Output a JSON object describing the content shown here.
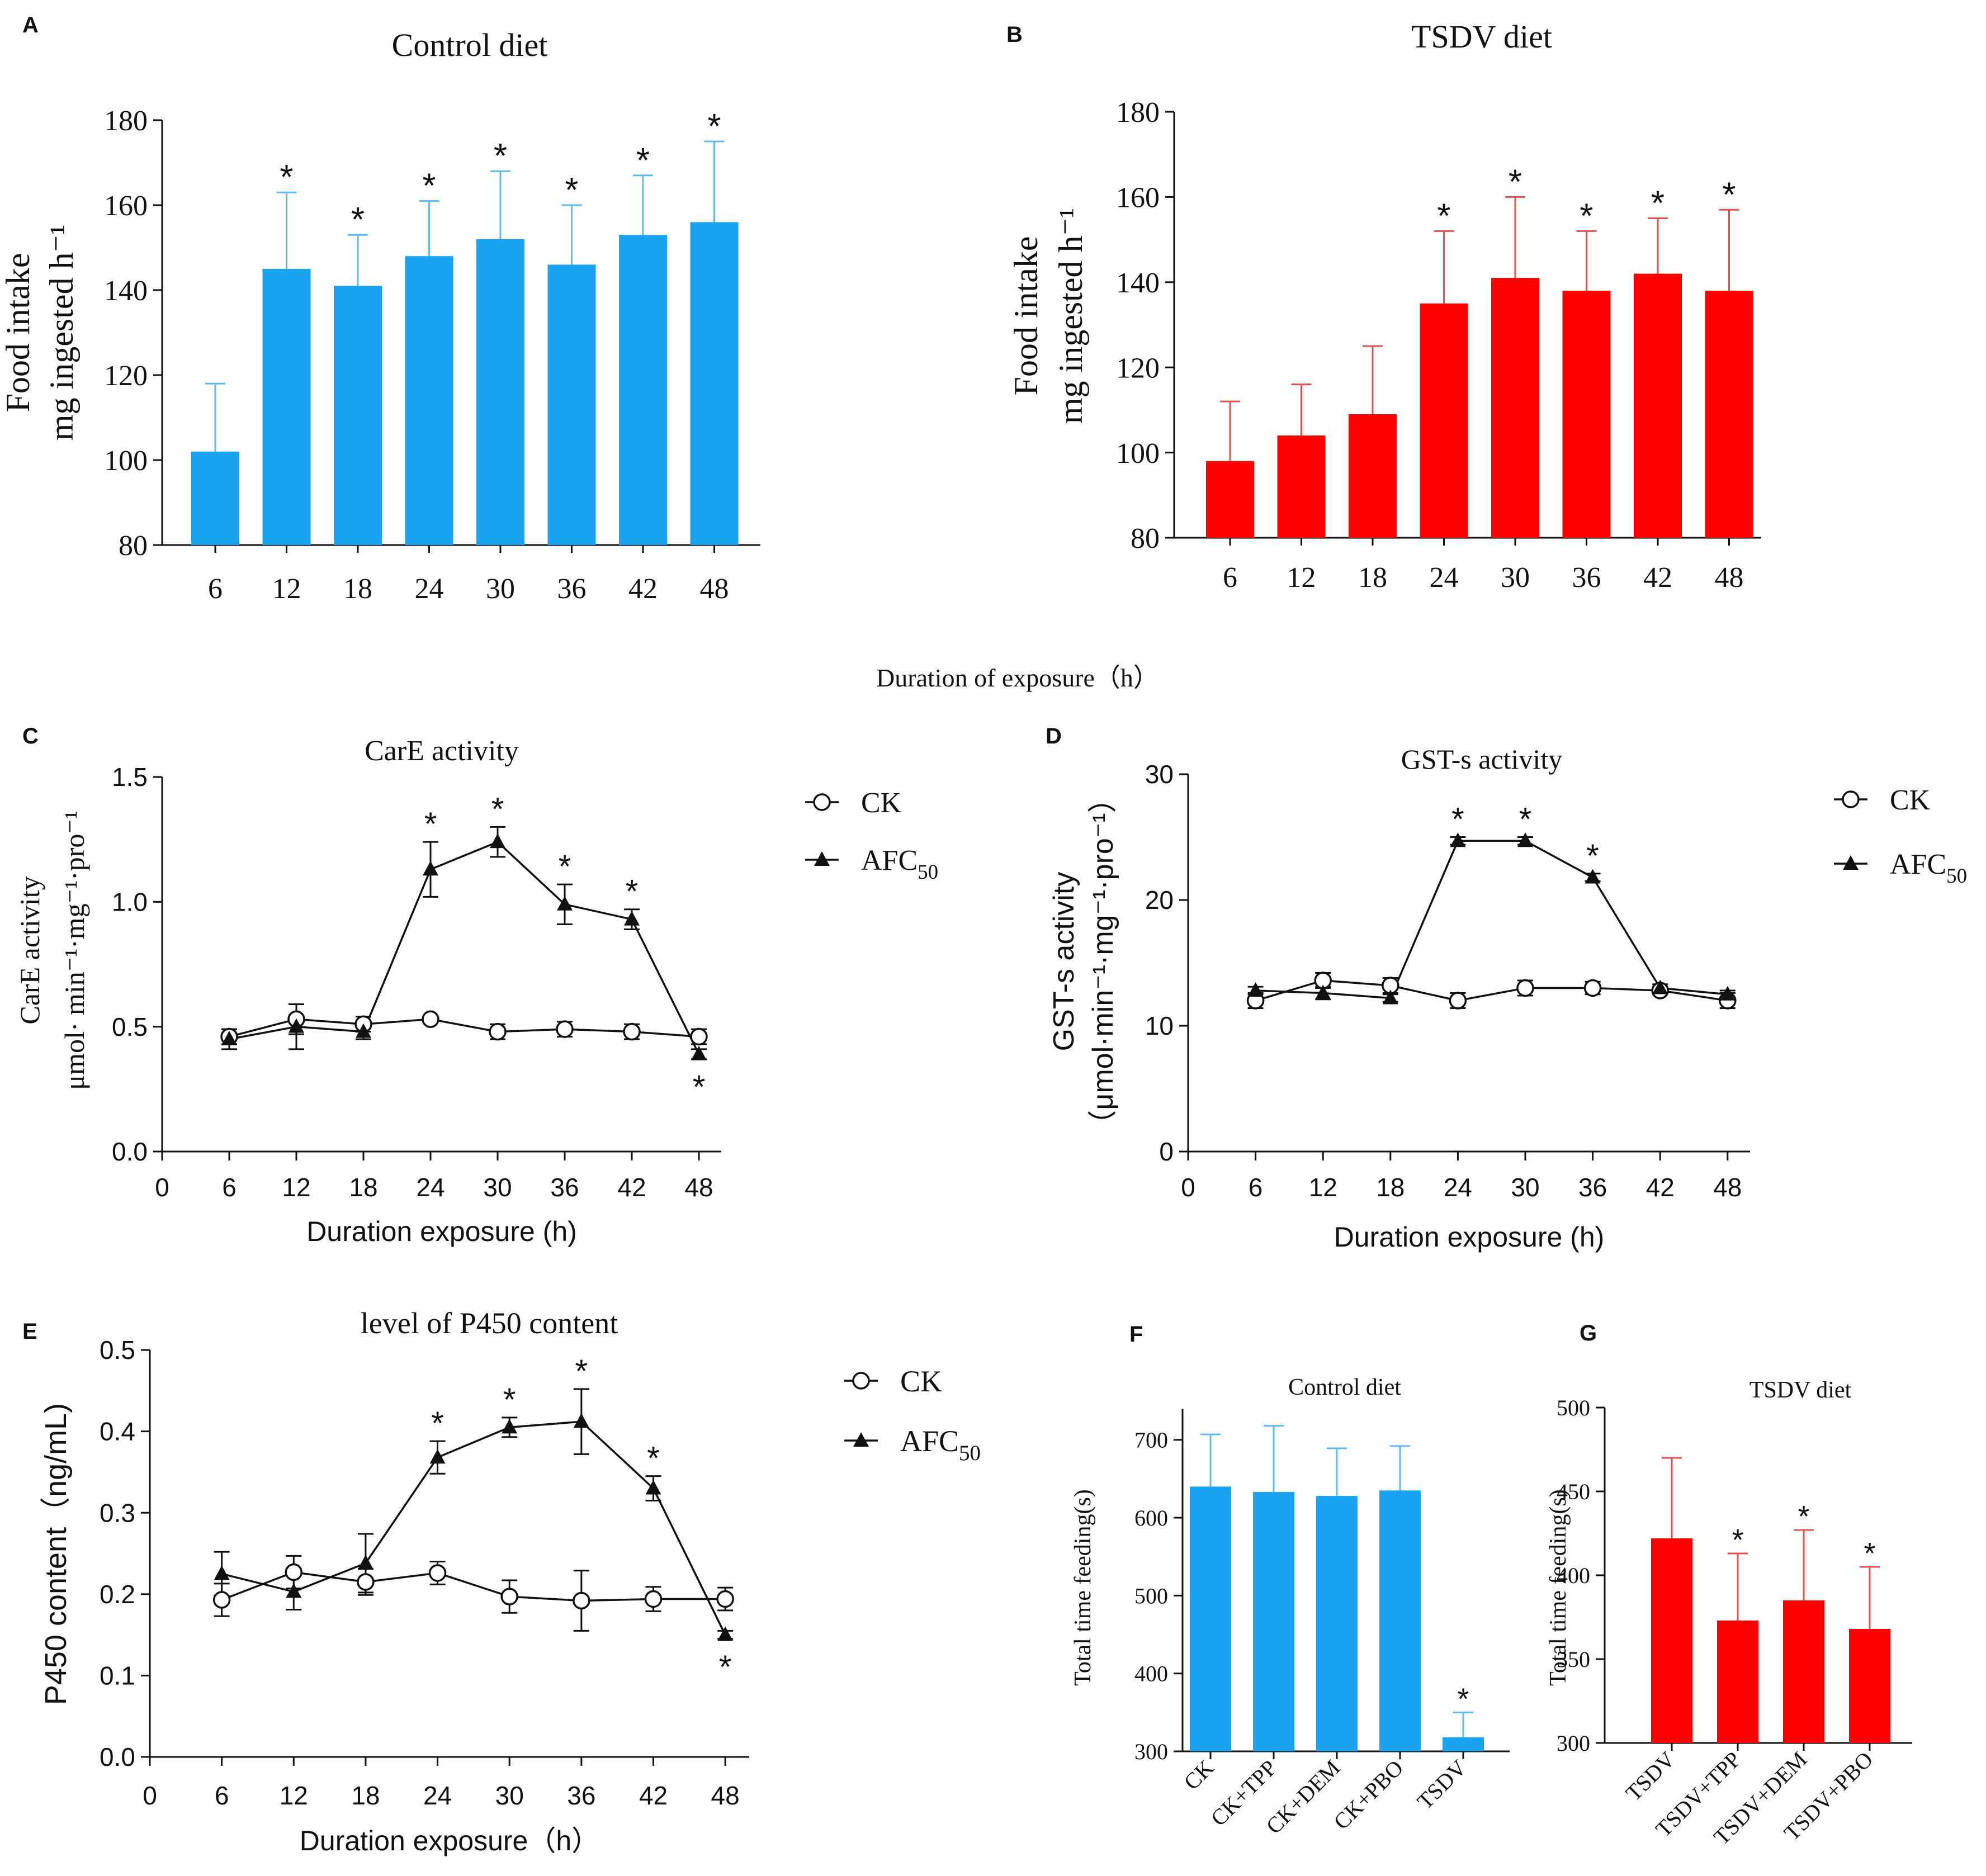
{
  "figure": {
    "shared_xlabel": "Duration of exposure（h）"
  },
  "chart_data": [
    {
      "id": "A",
      "panel_label": "A",
      "type": "bar",
      "title": "Control diet",
      "ylabel": [
        "Food intake",
        "mg ingested h⁻¹"
      ],
      "xlabel": "",
      "categories": [
        "6",
        "12",
        "18",
        "24",
        "30",
        "36",
        "42",
        "48"
      ],
      "values": [
        102,
        145,
        141,
        148,
        152,
        146,
        153,
        156
      ],
      "error_top": [
        118,
        163,
        153,
        161,
        168,
        160,
        167,
        175
      ],
      "significance": [
        "",
        "*",
        "*",
        "*",
        "*",
        "*",
        "*",
        "*"
      ],
      "ylim": [
        80,
        180
      ],
      "yticks": [
        80,
        100,
        120,
        140,
        160,
        180
      ],
      "bar_color": "#1aa3f0",
      "error_color": "#5fbbee"
    },
    {
      "id": "B",
      "panel_label": "B",
      "type": "bar",
      "title": "TSDV diet",
      "ylabel": [
        "Food intake",
        "mg ingested h⁻¹"
      ],
      "xlabel": "",
      "categories": [
        "6",
        "12",
        "18",
        "24",
        "30",
        "36",
        "42",
        "48"
      ],
      "values": [
        98,
        104,
        109,
        135,
        141,
        138,
        142,
        138
      ],
      "error_top": [
        112,
        116,
        125,
        152,
        160,
        152,
        155,
        157
      ],
      "significance": [
        "",
        "",
        "",
        "*",
        "*",
        "*",
        "*",
        "*"
      ],
      "ylim": [
        80,
        180
      ],
      "yticks": [
        80,
        100,
        120,
        140,
        160,
        180
      ],
      "bar_color": "#ff0000",
      "error_color": "#e05050"
    },
    {
      "id": "C",
      "panel_label": "C",
      "type": "line",
      "title": "CarE activity",
      "ylabel": [
        "CarE activity",
        "μmol· min⁻¹·mg⁻¹·pro⁻¹"
      ],
      "xlabel": "Duration exposure (h)",
      "x": [
        6,
        12,
        18,
        24,
        30,
        36,
        42,
        48
      ],
      "xticks": [
        0,
        6,
        12,
        18,
        24,
        30,
        36,
        42,
        48
      ],
      "xlim": [
        0,
        50
      ],
      "ylim": [
        0,
        1.5
      ],
      "yticks": [
        "0.0",
        "0.5",
        "1.0",
        "1.5"
      ],
      "series": [
        {
          "name": "CK",
          "marker": "circle",
          "values": [
            0.46,
            0.53,
            0.51,
            0.53,
            0.48,
            0.49,
            0.48,
            0.46
          ],
          "err": [
            0.03,
            0.06,
            0.03,
            0.01,
            0.03,
            0.03,
            0.03,
            0.03
          ]
        },
        {
          "name": "AFC",
          "name_sub": "50",
          "marker": "triangle",
          "values": [
            0.45,
            0.5,
            0.48,
            1.13,
            1.24,
            0.99,
            0.93,
            0.39
          ],
          "err": [
            0.04,
            0.09,
            0.03,
            0.11,
            0.06,
            0.08,
            0.04,
            0.02
          ]
        }
      ],
      "significance": [
        {
          "x": 24,
          "label": "*",
          "pos": "above"
        },
        {
          "x": 30,
          "label": "*",
          "pos": "above"
        },
        {
          "x": 36,
          "label": "*",
          "pos": "above"
        },
        {
          "x": 42,
          "label": "*",
          "pos": "above"
        },
        {
          "x": 48,
          "label": "*",
          "pos": "below"
        }
      ]
    },
    {
      "id": "D",
      "panel_label": "D",
      "type": "line",
      "title": "GST-s activity",
      "ylabel": [
        "GST-s activity",
        "（μmol·min⁻¹·mg⁻¹·pro⁻¹）"
      ],
      "xlabel": "Duration exposure (h)",
      "x": [
        6,
        12,
        18,
        24,
        30,
        36,
        42,
        48
      ],
      "xticks": [
        0,
        6,
        12,
        18,
        24,
        30,
        36,
        42,
        48
      ],
      "xlim": [
        0,
        50
      ],
      "ylim": [
        0,
        30
      ],
      "yticks": [
        "0",
        "10",
        "20",
        "30"
      ],
      "series": [
        {
          "name": "CK",
          "marker": "circle",
          "values": [
            12.0,
            13.6,
            13.2,
            12.0,
            13.0,
            13.0,
            12.8,
            12.0
          ],
          "err": [
            0.6,
            0.6,
            0.6,
            0.6,
            0.6,
            0.5,
            0.3,
            0.6
          ]
        },
        {
          "name": "AFC",
          "name_sub": "50",
          "marker": "triangle",
          "values": [
            12.8,
            12.6,
            12.2,
            24.7,
            24.7,
            21.8,
            13.0,
            12.5
          ],
          "err": [
            0.3,
            0.5,
            0.3,
            0.3,
            0.3,
            0.3,
            0.3,
            0.3
          ]
        }
      ],
      "significance": [
        {
          "x": 24,
          "label": "*",
          "pos": "above"
        },
        {
          "x": 30,
          "label": "*",
          "pos": "above"
        },
        {
          "x": 36,
          "label": "*",
          "pos": "above"
        }
      ]
    },
    {
      "id": "E",
      "panel_label": "E",
      "type": "line",
      "title": "level of P450 content",
      "ylabel": [
        "P450 content（ng/mL)"
      ],
      "xlabel": "Duration exposure（h）",
      "x": [
        6,
        12,
        18,
        24,
        30,
        36,
        42,
        48
      ],
      "xticks": [
        0,
        6,
        12,
        18,
        24,
        30,
        36,
        42,
        48
      ],
      "xlim": [
        0,
        50
      ],
      "ylim": [
        0,
        0.5
      ],
      "yticks": [
        "0.0",
        "0.1",
        "0.2",
        "0.3",
        "0.4",
        "0.5"
      ],
      "series": [
        {
          "name": "CK",
          "marker": "circle",
          "values": [
            0.193,
            0.227,
            0.215,
            0.226,
            0.197,
            0.192,
            0.194,
            0.194
          ],
          "err": [
            0.02,
            0.02,
            0.016,
            0.014,
            0.02,
            0.037,
            0.015,
            0.014
          ]
        },
        {
          "name": "AFC",
          "name_sub": "50",
          "marker": "triangle",
          "values": [
            0.225,
            0.203,
            0.238,
            0.368,
            0.405,
            0.412,
            0.33,
            0.15
          ],
          "err": [
            0.027,
            0.022,
            0.036,
            0.02,
            0.012,
            0.04,
            0.015,
            0.005
          ]
        }
      ],
      "significance": [
        {
          "x": 24,
          "label": "*",
          "pos": "above"
        },
        {
          "x": 30,
          "label": "*",
          "pos": "above"
        },
        {
          "x": 36,
          "label": "*",
          "pos": "above"
        },
        {
          "x": 42,
          "label": "*",
          "pos": "above"
        },
        {
          "x": 48,
          "label": "*",
          "pos": "below"
        }
      ]
    },
    {
      "id": "F",
      "panel_label": "F",
      "type": "bar",
      "title": "Control diet",
      "ylabel": [
        "Total time feeding(s)"
      ],
      "xlabel": "",
      "categories": [
        "CK",
        "CK+TPP",
        "CK+DEM",
        "CK+PBO",
        "TSDV"
      ],
      "values": [
        640,
        633,
        628,
        635,
        318
      ],
      "error_top": [
        707,
        718,
        689,
        692,
        350
      ],
      "significance": [
        "",
        "",
        "",
        "",
        "*"
      ],
      "ylim": [
        300,
        740
      ],
      "yticks": [
        300,
        400,
        500,
        600,
        700
      ],
      "bar_color": "#1aa3f0",
      "error_color": "#5fbbee",
      "rotate_labels": true
    },
    {
      "id": "G",
      "panel_label": "G",
      "type": "bar",
      "title": "TSDV diet",
      "ylabel": [
        "Total time feeding(s)"
      ],
      "xlabel": "",
      "categories": [
        "TSDV",
        "TSDV+TPP",
        "TSDV+DEM",
        "TSDV+PBO"
      ],
      "values": [
        422,
        373,
        385,
        368
      ],
      "error_top": [
        470,
        413,
        427,
        405
      ],
      "significance": [
        "",
        "*",
        "*",
        "*"
      ],
      "ylim": [
        300,
        500
      ],
      "yticks": [
        300,
        350,
        400,
        450,
        500
      ],
      "bar_color": "#ff0000",
      "error_color": "#e05050",
      "rotate_labels": true
    }
  ]
}
